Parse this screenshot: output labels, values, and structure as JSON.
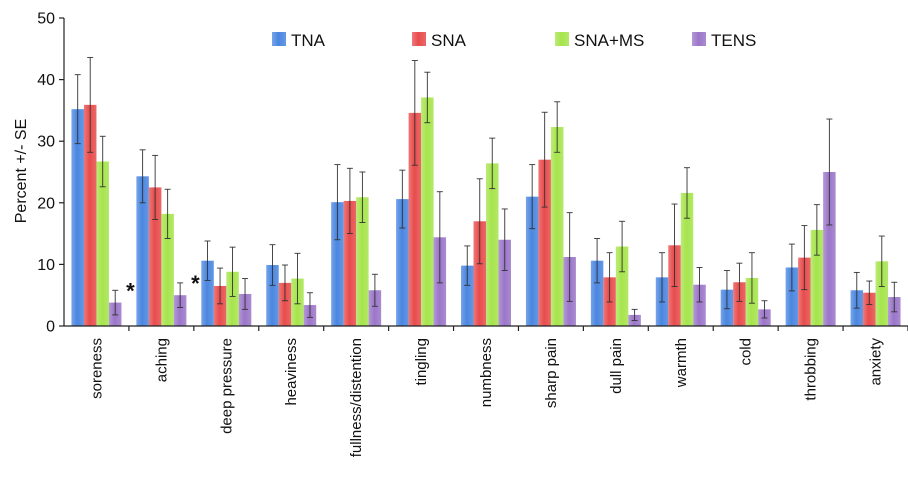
{
  "chart_data": {
    "type": "bar",
    "title": "",
    "xlabel": "",
    "ylabel": "Percent +/- SE",
    "ylim": [
      0,
      50
    ],
    "yticks": [
      0,
      10,
      20,
      30,
      40,
      50
    ],
    "grid": false,
    "legend_position": "top",
    "categories": [
      "soreness",
      "aching",
      "deep pressure",
      "heaviness",
      "fullness/distention",
      "tingling",
      "numbness",
      "sharp pain",
      "dull pain",
      "warmth",
      "cold",
      "throbbing",
      "anxiety"
    ],
    "series": [
      {
        "name": "TNA",
        "color": "#4a86e0",
        "values": [
          35.2,
          24.3,
          10.6,
          9.9,
          20.1,
          20.6,
          9.8,
          21.0,
          10.6,
          7.9,
          5.9,
          9.5,
          5.8
        ],
        "errors": [
          5.6,
          4.3,
          3.2,
          3.3,
          6.1,
          4.7,
          3.2,
          5.2,
          3.6,
          4.0,
          3.1,
          3.8,
          2.9
        ]
      },
      {
        "name": "SNA",
        "color": "#e84c4c",
        "values": [
          35.9,
          22.5,
          6.5,
          7.0,
          20.3,
          34.6,
          17.0,
          27.0,
          7.9,
          13.1,
          7.1,
          11.1,
          5.4
        ],
        "errors": [
          7.7,
          5.2,
          2.9,
          2.9,
          5.3,
          8.5,
          6.9,
          7.7,
          4.0,
          6.7,
          3.1,
          5.2,
          1.9
        ]
      },
      {
        "name": "SNA+MS",
        "color": "#a6e44c",
        "values": [
          26.7,
          18.2,
          8.8,
          7.7,
          20.9,
          37.1,
          26.4,
          32.3,
          12.9,
          21.6,
          7.8,
          15.6,
          10.5
        ],
        "errors": [
          4.1,
          4.0,
          4.0,
          4.1,
          4.1,
          4.1,
          4.1,
          4.1,
          4.1,
          4.1,
          4.1,
          4.1,
          4.1
        ]
      },
      {
        "name": "TENS",
        "color": "#9b76c9",
        "values": [
          3.8,
          5.0,
          5.2,
          3.4,
          5.8,
          14.4,
          14.0,
          11.2,
          1.8,
          6.7,
          2.7,
          25.0,
          4.7
        ],
        "errors": [
          2.0,
          2.0,
          2.5,
          2.0,
          2.6,
          7.4,
          5.0,
          7.2,
          0.9,
          2.8,
          1.4,
          8.6,
          2.4
        ]
      }
    ],
    "annotations": [
      {
        "text": "*",
        "category": "soreness",
        "series": "TENS"
      },
      {
        "text": "*",
        "category": "aching",
        "series": "TENS"
      }
    ]
  }
}
